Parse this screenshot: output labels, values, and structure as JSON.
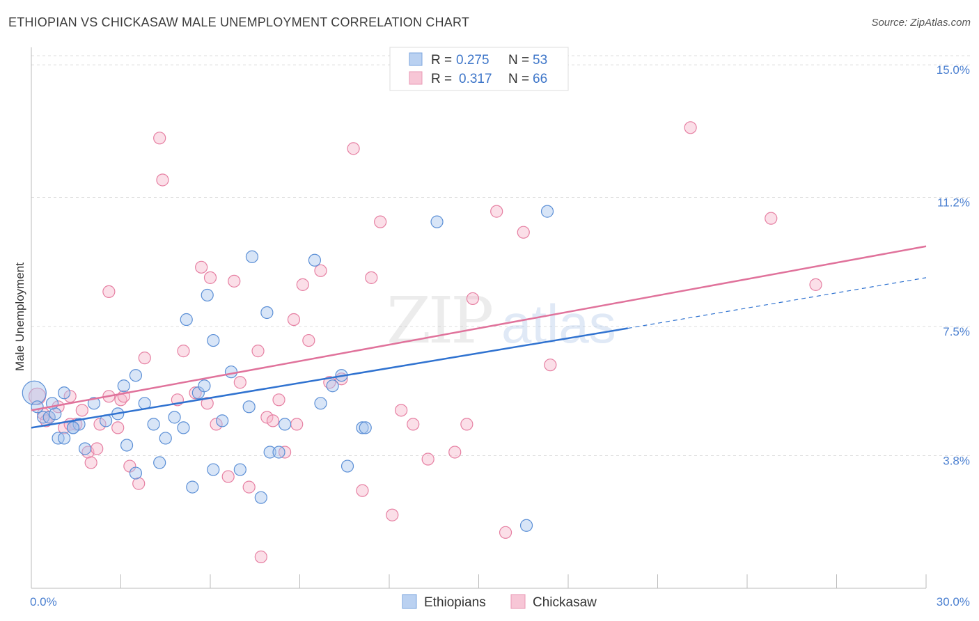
{
  "title": "ETHIOPIAN VS CHICKASAW MALE UNEMPLOYMENT CORRELATION CHART",
  "source": "Source: ZipAtlas.com",
  "colors": {
    "blue": "#5b8fd6",
    "blue_fill": "#a9c6ee",
    "blue_line": "#2f72d0",
    "pink": "#e67fa2",
    "pink_fill": "#f6b9cc",
    "pink_line": "#e0729b",
    "tick": "#4a7fd0",
    "grid": "#dcdcdc"
  },
  "legend": {
    "r_label": "R =",
    "n_label": "N =",
    "rows": [
      {
        "r": "0.275",
        "n": "53"
      },
      {
        "r": "0.317",
        "n": "66"
      }
    ]
  },
  "bottom_legend": [
    "Ethiopians",
    "Chickasaw"
  ],
  "watermark": {
    "zip": "ZIP",
    "atlas": "atlas"
  },
  "chart_data": {
    "type": "scatter",
    "ylabel": "Male Unemployment",
    "xlim": [
      0,
      30
    ],
    "ylim": [
      0,
      15.5
    ],
    "y_ticks": [
      {
        "v": 3.8,
        "label": "3.8%"
      },
      {
        "v": 7.5,
        "label": "7.5%"
      },
      {
        "v": 11.2,
        "label": "11.2%"
      },
      {
        "v": 15.0,
        "label": "15.0%"
      }
    ],
    "x_ticks": [
      {
        "v": 0,
        "label": "0.0%"
      },
      {
        "v": 30,
        "label": "30.0%"
      }
    ],
    "series": [
      {
        "name": "Ethiopians",
        "points": [
          [
            0.1,
            5.6
          ],
          [
            0.2,
            5.2
          ],
          [
            0.4,
            4.9
          ],
          [
            0.6,
            4.9
          ],
          [
            0.9,
            4.3
          ],
          [
            1.1,
            4.3
          ],
          [
            1.4,
            4.6
          ],
          [
            1.6,
            4.7
          ],
          [
            1.8,
            4.0
          ],
          [
            0.8,
            5.0
          ],
          [
            1.1,
            5.6
          ],
          [
            2.1,
            5.3
          ],
          [
            2.5,
            4.8
          ],
          [
            2.9,
            5.0
          ],
          [
            3.1,
            5.8
          ],
          [
            3.5,
            6.1
          ],
          [
            3.8,
            5.3
          ],
          [
            3.2,
            4.1
          ],
          [
            3.5,
            3.3
          ],
          [
            4.1,
            4.7
          ],
          [
            4.3,
            3.6
          ],
          [
            4.5,
            4.3
          ],
          [
            4.8,
            4.9
          ],
          [
            5.1,
            4.6
          ],
          [
            5.4,
            2.9
          ],
          [
            5.6,
            5.6
          ],
          [
            5.8,
            5.8
          ],
          [
            6.1,
            3.4
          ],
          [
            6.4,
            4.8
          ],
          [
            6.7,
            6.2
          ],
          [
            7.0,
            3.4
          ],
          [
            7.3,
            5.2
          ],
          [
            7.7,
            2.6
          ],
          [
            8.0,
            3.9
          ],
          [
            8.3,
            3.9
          ],
          [
            8.5,
            4.7
          ],
          [
            7.4,
            9.5
          ],
          [
            7.9,
            7.9
          ],
          [
            6.1,
            7.1
          ],
          [
            5.2,
            7.7
          ],
          [
            5.9,
            8.4
          ],
          [
            9.5,
            9.4
          ],
          [
            9.7,
            5.3
          ],
          [
            10.1,
            5.8
          ],
          [
            10.4,
            6.1
          ],
          [
            10.6,
            3.5
          ],
          [
            11.1,
            4.6
          ],
          [
            11.2,
            4.6
          ],
          [
            13.6,
            10.5
          ],
          [
            16.6,
            1.8
          ],
          [
            17.3,
            10.8
          ],
          [
            1.4,
            4.6
          ],
          [
            0.7,
            5.3
          ]
        ]
      },
      {
        "name": "Chickasaw",
        "points": [
          [
            0.2,
            5.5
          ],
          [
            0.4,
            5.0
          ],
          [
            0.6,
            4.9
          ],
          [
            0.9,
            5.2
          ],
          [
            1.1,
            4.6
          ],
          [
            1.3,
            5.5
          ],
          [
            1.5,
            4.7
          ],
          [
            1.7,
            5.1
          ],
          [
            1.9,
            3.9
          ],
          [
            2.0,
            3.6
          ],
          [
            2.2,
            4.0
          ],
          [
            2.3,
            4.7
          ],
          [
            2.6,
            5.5
          ],
          [
            2.6,
            8.5
          ],
          [
            3.0,
            5.4
          ],
          [
            3.1,
            5.5
          ],
          [
            3.3,
            3.5
          ],
          [
            3.6,
            3.0
          ],
          [
            3.8,
            6.6
          ],
          [
            4.3,
            12.9
          ],
          [
            4.4,
            11.7
          ],
          [
            4.9,
            5.4
          ],
          [
            5.1,
            6.8
          ],
          [
            5.5,
            5.6
          ],
          [
            5.7,
            9.2
          ],
          [
            5.9,
            5.3
          ],
          [
            6.0,
            8.9
          ],
          [
            6.2,
            4.7
          ],
          [
            6.6,
            3.2
          ],
          [
            6.8,
            8.8
          ],
          [
            7.0,
            5.9
          ],
          [
            7.3,
            2.9
          ],
          [
            7.6,
            6.8
          ],
          [
            7.7,
            0.9
          ],
          [
            7.9,
            4.9
          ],
          [
            8.1,
            4.8
          ],
          [
            8.3,
            5.4
          ],
          [
            8.5,
            3.9
          ],
          [
            8.8,
            7.7
          ],
          [
            8.9,
            4.7
          ],
          [
            9.1,
            8.7
          ],
          [
            9.3,
            7.1
          ],
          [
            9.7,
            9.1
          ],
          [
            10.0,
            5.9
          ],
          [
            10.4,
            6.0
          ],
          [
            10.8,
            12.6
          ],
          [
            11.1,
            2.8
          ],
          [
            11.4,
            8.9
          ],
          [
            11.7,
            10.5
          ],
          [
            12.1,
            2.1
          ],
          [
            12.4,
            5.1
          ],
          [
            12.8,
            4.7
          ],
          [
            13.3,
            3.7
          ],
          [
            14.2,
            3.9
          ],
          [
            14.6,
            4.7
          ],
          [
            14.8,
            8.3
          ],
          [
            15.6,
            10.8
          ],
          [
            15.9,
            1.6
          ],
          [
            16.5,
            10.2
          ],
          [
            17.4,
            6.4
          ],
          [
            22.1,
            13.2
          ],
          [
            24.8,
            10.6
          ],
          [
            26.3,
            8.7
          ],
          [
            1.3,
            4.7
          ],
          [
            0.5,
            4.8
          ],
          [
            2.9,
            4.6
          ]
        ]
      }
    ],
    "trendlines": [
      {
        "series": "Ethiopians",
        "x_solid": [
          0,
          20
        ],
        "y_solid": [
          4.6,
          7.45
        ],
        "x_dashed": [
          20,
          30
        ],
        "y_dashed": [
          7.45,
          8.9
        ]
      },
      {
        "series": "Chickasaw",
        "x_solid": [
          0,
          30
        ],
        "y_solid": [
          5.1,
          9.8
        ]
      }
    ],
    "grid": true,
    "legend_position": "top-center"
  }
}
